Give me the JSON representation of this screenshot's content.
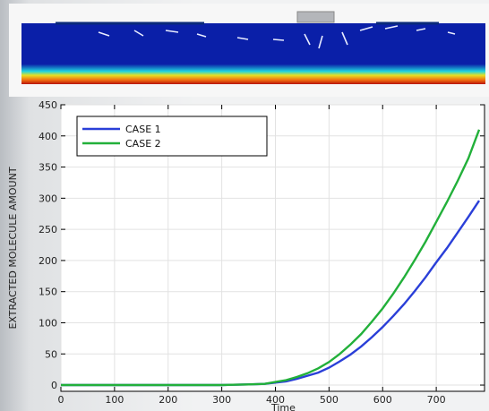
{
  "heatmap": {
    "colors": {
      "low": "#0a1fa8",
      "mid": "#1fd4e0",
      "high": "#b81408",
      "plate": "#b4b6ba"
    }
  },
  "chart_data": {
    "type": "line",
    "xlabel": "Time",
    "ylabel": "EXTRACTED MOLECULE AMOUNT",
    "xlim": [
      0,
      790
    ],
    "ylim": [
      -10,
      450
    ],
    "xticks": [
      0,
      100,
      200,
      300,
      400,
      500,
      600,
      700
    ],
    "yticks": [
      0,
      50,
      100,
      150,
      200,
      250,
      300,
      350,
      400,
      450
    ],
    "grid": true,
    "legend_position": "top-left",
    "series": [
      {
        "name": "CASE 1",
        "color": "#2a3fd8",
        "x": [
          0,
          300,
          350,
          380,
          400,
          420,
          440,
          460,
          480,
          500,
          520,
          540,
          560,
          580,
          600,
          620,
          640,
          660,
          680,
          700,
          720,
          740,
          760,
          780
        ],
        "y": [
          0,
          0,
          1,
          2,
          4,
          6,
          10,
          15,
          20,
          28,
          38,
          49,
          62,
          77,
          93,
          111,
          130,
          151,
          173,
          197,
          220,
          245,
          270,
          296
        ]
      },
      {
        "name": "CASE 2",
        "color": "#22b03a",
        "x": [
          0,
          300,
          350,
          380,
          400,
          420,
          440,
          460,
          480,
          500,
          520,
          540,
          560,
          580,
          600,
          620,
          640,
          660,
          680,
          700,
          720,
          740,
          760,
          780
        ],
        "y": [
          0,
          0,
          1,
          2,
          5,
          8,
          13,
          19,
          27,
          37,
          50,
          65,
          82,
          102,
          123,
          147,
          173,
          201,
          230,
          262,
          294,
          328,
          364,
          410
        ]
      }
    ]
  }
}
